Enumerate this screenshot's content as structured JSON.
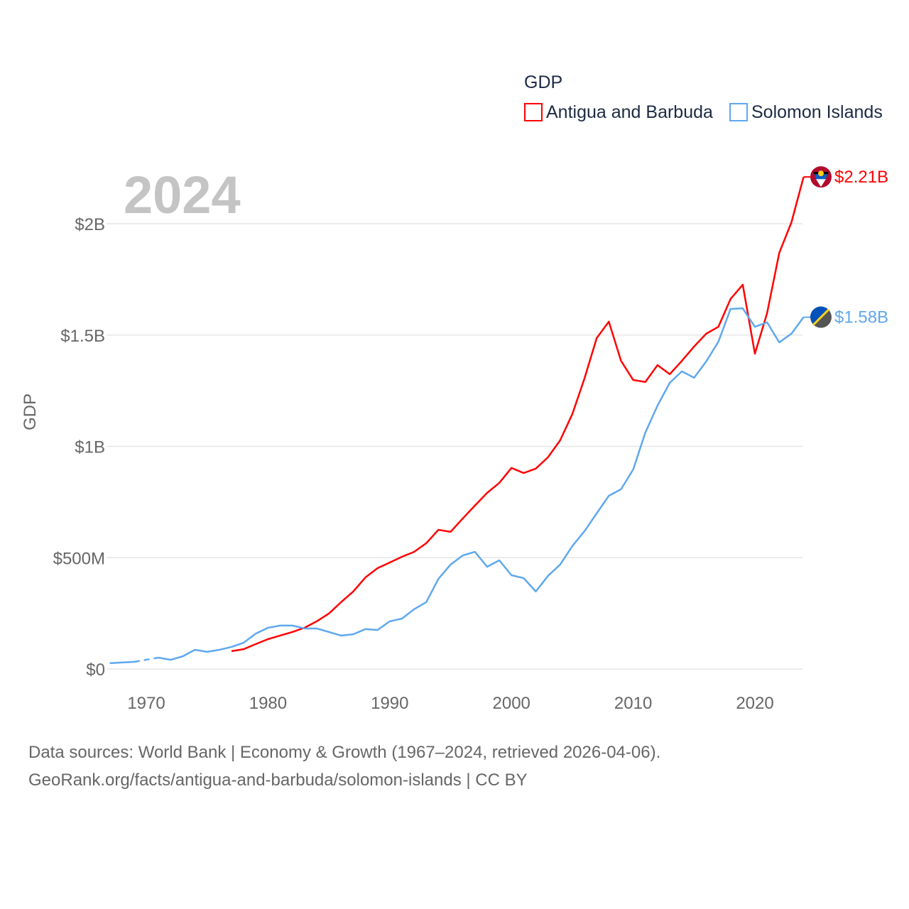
{
  "chart_data": {
    "type": "line",
    "title": "GDP",
    "ylabel": "GDP",
    "xlabel": "",
    "year_label": "2024",
    "legend_title": "GDP",
    "legend_position": "top-right",
    "xlim": [
      1967,
      2024
    ],
    "ylim": [
      0,
      2.3
    ],
    "x_ticks": [
      1970,
      1980,
      1990,
      2000,
      2010,
      2020
    ],
    "x_tick_labels": [
      "1970",
      "1980",
      "1990",
      "2000",
      "2010",
      "2020"
    ],
    "y_ticks": [
      0,
      0.5,
      1,
      1.5,
      2
    ],
    "y_tick_labels": [
      "$0",
      "$500M",
      "$1B",
      "$1.5B",
      "$2B"
    ],
    "grid": true,
    "units": "billions USD",
    "series": [
      {
        "name": "Antigua and Barbuda",
        "color": "#ff0000",
        "flag": "antigua-and-barbuda-flag",
        "end_label": "$2.21B",
        "x": [
          1977,
          1978,
          1979,
          1980,
          1981,
          1982,
          1983,
          1984,
          1985,
          1986,
          1987,
          1988,
          1989,
          1990,
          1991,
          1992,
          1993,
          1994,
          1995,
          1996,
          1997,
          1998,
          1999,
          2000,
          2001,
          2002,
          2003,
          2004,
          2005,
          2006,
          2007,
          2008,
          2009,
          2010,
          2011,
          2012,
          2013,
          2014,
          2015,
          2016,
          2017,
          2018,
          2019,
          2020,
          2021,
          2022,
          2023,
          2024
        ],
        "values": [
          0.08,
          0.089,
          0.112,
          0.134,
          0.15,
          0.166,
          0.185,
          0.214,
          0.249,
          0.3,
          0.348,
          0.411,
          0.453,
          0.478,
          0.504,
          0.526,
          0.565,
          0.625,
          0.616,
          0.676,
          0.734,
          0.791,
          0.836,
          0.903,
          0.88,
          0.9,
          0.951,
          1.027,
          1.145,
          1.305,
          1.486,
          1.56,
          1.384,
          1.298,
          1.289,
          1.365,
          1.324,
          1.384,
          1.448,
          1.506,
          1.537,
          1.662,
          1.726,
          1.416,
          1.598,
          1.869,
          2.006,
          2.21
        ]
      },
      {
        "name": "Solomon Islands",
        "color": "#5fa8ee",
        "flag": "solomon-islands-flag",
        "end_label": "$1.58B",
        "missing_years": [
          1970
        ],
        "x": [
          1967,
          1968,
          1969,
          1970,
          1971,
          1972,
          1973,
          1974,
          1975,
          1976,
          1977,
          1978,
          1979,
          1980,
          1981,
          1982,
          1983,
          1984,
          1985,
          1986,
          1987,
          1988,
          1989,
          1990,
          1991,
          1992,
          1993,
          1994,
          1995,
          1996,
          1997,
          1998,
          1999,
          2000,
          2001,
          2002,
          2003,
          2004,
          2005,
          2006,
          2007,
          2008,
          2009,
          2010,
          2011,
          2012,
          2013,
          2014,
          2015,
          2016,
          2017,
          2018,
          2019,
          2020,
          2021,
          2022,
          2023,
          2024
        ],
        "values": [
          0.026,
          0.029,
          0.032,
          null,
          0.051,
          0.041,
          0.057,
          0.086,
          0.077,
          0.086,
          0.099,
          0.118,
          0.159,
          0.185,
          0.195,
          0.195,
          0.182,
          0.182,
          0.166,
          0.15,
          0.156,
          0.179,
          0.175,
          0.214,
          0.226,
          0.268,
          0.3,
          0.405,
          0.469,
          0.51,
          0.526,
          0.459,
          0.488,
          0.421,
          0.408,
          0.348,
          0.418,
          0.469,
          0.552,
          0.619,
          0.699,
          0.778,
          0.807,
          0.896,
          1.062,
          1.183,
          1.285,
          1.337,
          1.308,
          1.381,
          1.47,
          1.617,
          1.62,
          1.537,
          1.557,
          1.467,
          1.506,
          1.58
        ]
      }
    ]
  },
  "footer": {
    "line1": "Data sources: World Bank | Economy & Growth (1967–2024, retrieved 2026-04-06).",
    "line2": "GeoRank.org/facts/antigua-and-barbuda/solomon-islands | CC BY"
  }
}
